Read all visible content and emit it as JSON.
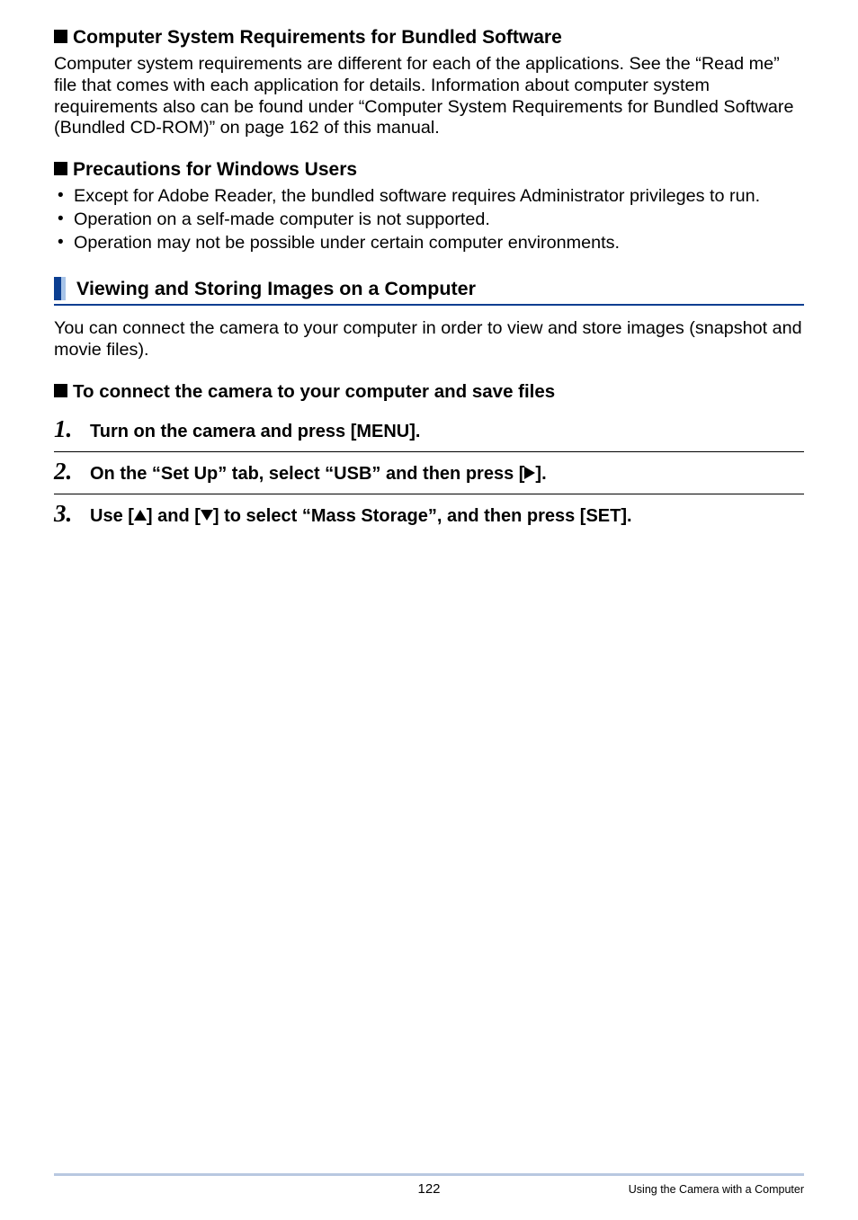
{
  "sec1": {
    "title": "Computer System Requirements for Bundled Software",
    "body": "Computer system requirements are different for each of the applications. See the “Read me” file that comes with each application for details. Information about computer system requirements also can be found under “Computer System Requirements for Bundled Software (Bundled CD-ROM)” on page 162 of this manual."
  },
  "sec2": {
    "title": "Precautions for Windows Users",
    "items": [
      "Except for Adobe Reader, the bundled software requires Administrator privileges to run.",
      "Operation on a self-made computer is not supported.",
      "Operation may not be possible under certain computer environments."
    ]
  },
  "barHeading": {
    "title": "Viewing and Storing Images on a Computer",
    "body": "You can connect the camera to your computer in order to view and store images (snapshot and movie files)."
  },
  "sub": {
    "title": "To connect the camera to your computer and save files"
  },
  "steps": {
    "s1": {
      "num": "1.",
      "t": "Turn on the camera and press [MENU]."
    },
    "s2": {
      "num": "2.",
      "pre": "On the “Set Up” tab, select “USB” and then press [",
      "post": "]."
    },
    "s3": {
      "num": "3.",
      "pre": "Use [",
      "mid1": "] and [",
      "mid2": "] to select “Mass Storage”, and then press [SET]."
    }
  },
  "footer": {
    "page": "122",
    "text": "Using the Camera with a Computer"
  }
}
